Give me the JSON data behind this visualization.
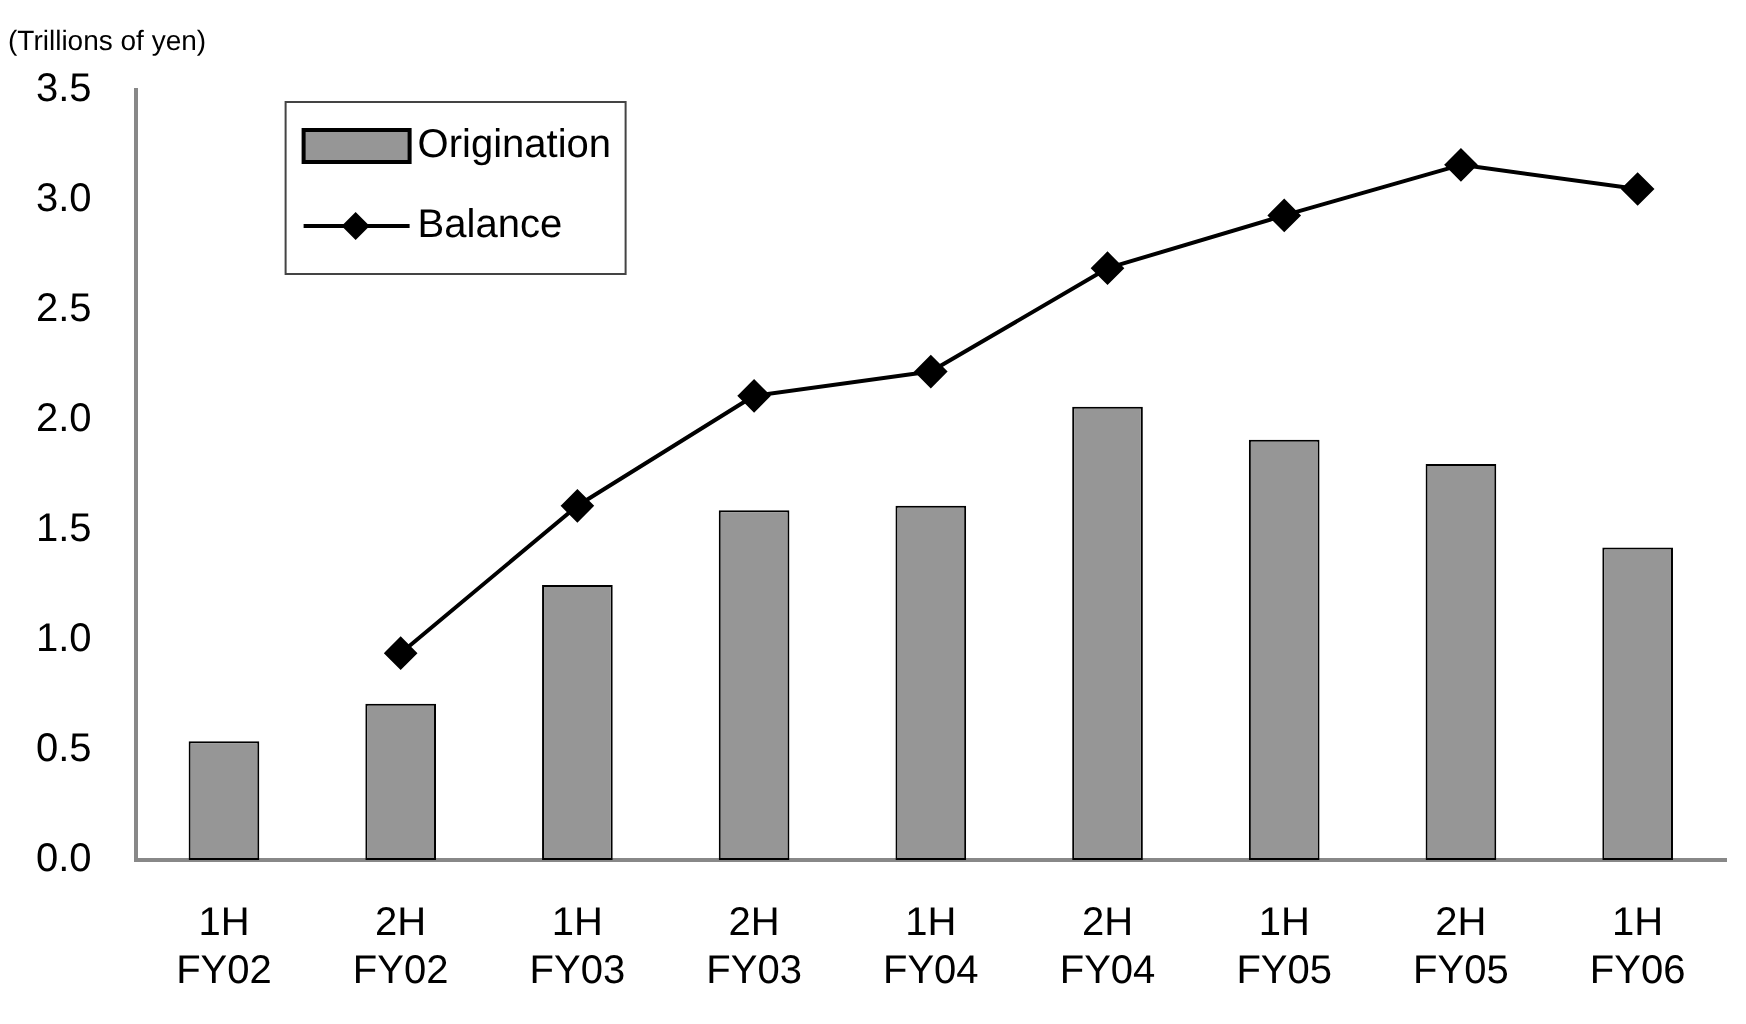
{
  "chart_data": {
    "type": "bar",
    "ylabel": "(Trillions of yen)",
    "categories": [
      "1H\nFY02",
      "2H\nFY02",
      "1H\nFY03",
      "2H\nFY03",
      "1H\nFY04",
      "2H\nFY04",
      "1H\nFY05",
      "2H\nFY05",
      "1H\nFY06"
    ],
    "series": [
      {
        "name": "Origination",
        "color": "#969696",
        "values": [
          0.54,
          0.71,
          1.25,
          1.59,
          1.61,
          2.06,
          1.91,
          1.8,
          1.42
        ]
      },
      {
        "name": "Balance",
        "type": "line",
        "color": "#000000",
        "values": [
          null,
          0.94,
          1.61,
          2.11,
          2.22,
          2.69,
          2.93,
          3.16,
          3.05
        ]
      }
    ],
    "ylim": [
      0,
      3.5
    ],
    "yticks": [
      {
        "value": 0,
        "label": "0.0"
      },
      0.5,
      {
        "value": 1,
        "label": "1.0"
      },
      1.5,
      {
        "value": 2,
        "label": "2.0"
      },
      2.5,
      {
        "value": 3,
        "label": "3.0"
      },
      3.5
    ],
    "grid": false,
    "legend": "top left",
    "marker": "diamond"
  }
}
